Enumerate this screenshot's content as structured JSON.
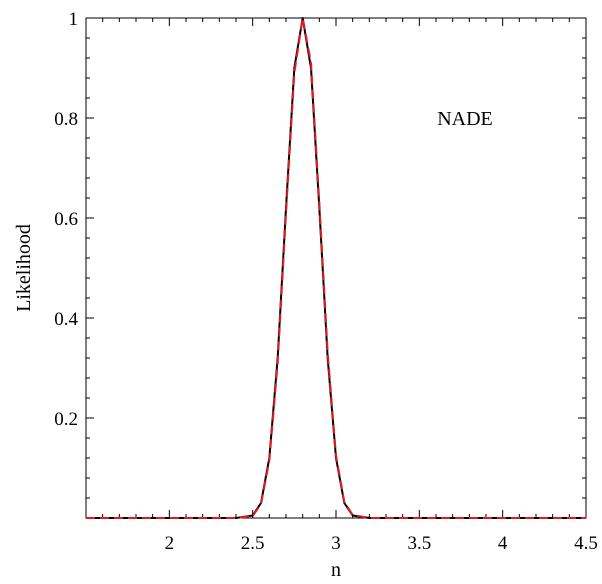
{
  "chart_data": {
    "type": "line",
    "title": "",
    "xlabel": "n",
    "ylabel": "Likelihood",
    "xlim": [
      1.5,
      4.5
    ],
    "ylim": [
      0,
      1
    ],
    "x_ticks": [
      2,
      2.5,
      3,
      3.5,
      4,
      4.5
    ],
    "x_tick_labels": [
      "2",
      "2.5",
      "3",
      "3.5",
      "4",
      "4.5"
    ],
    "y_ticks": [
      0.2,
      0.4,
      0.6,
      0.8,
      1
    ],
    "y_tick_labels": [
      "0.2",
      "0.4",
      "0.6",
      "0.8",
      "1"
    ],
    "grid": false,
    "annotation": "NADE",
    "series": [
      {
        "style": "solid",
        "color": "#000000",
        "x": [
          1.5,
          2.4,
          2.5,
          2.55,
          2.6,
          2.65,
          2.7,
          2.75,
          2.8,
          2.85,
          2.9,
          2.95,
          3.0,
          3.05,
          3.1,
          3.2,
          4.5
        ],
        "values": [
          0,
          0,
          0.005,
          0.03,
          0.12,
          0.32,
          0.62,
          0.9,
          1.0,
          0.9,
          0.62,
          0.32,
          0.12,
          0.03,
          0.005,
          0,
          0
        ]
      },
      {
        "style": "dashed",
        "color": "#e41a1c",
        "x": [
          1.5,
          2.4,
          2.5,
          2.55,
          2.6,
          2.65,
          2.7,
          2.75,
          2.8,
          2.85,
          2.9,
          2.95,
          3.0,
          3.05,
          3.1,
          3.2,
          4.5
        ],
        "values": [
          0,
          0,
          0.004,
          0.028,
          0.115,
          0.31,
          0.61,
          0.89,
          1.0,
          0.91,
          0.63,
          0.33,
          0.125,
          0.032,
          0.006,
          0,
          0
        ]
      }
    ]
  }
}
